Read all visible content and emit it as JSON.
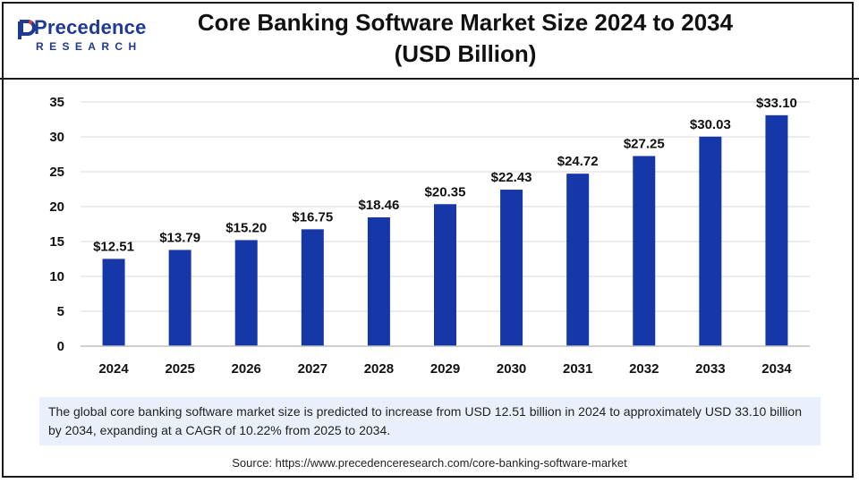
{
  "brand": {
    "name": "Precedence",
    "subtitle": "RESEARCH",
    "color": "#1f3a93"
  },
  "chart_data": {
    "type": "bar",
    "title_line1": "Core Banking Software Market Size 2024 to 2034",
    "title_line2": "(USD Billion)",
    "categories": [
      "2024",
      "2025",
      "2026",
      "2027",
      "2028",
      "2029",
      "2030",
      "2031",
      "2032",
      "2033",
      "2034"
    ],
    "values": [
      12.51,
      13.79,
      15.2,
      16.75,
      18.46,
      20.35,
      22.43,
      24.72,
      27.25,
      30.03,
      33.1
    ],
    "value_labels": [
      "$12.51",
      "$13.79",
      "$15.20",
      "$16.75",
      "$18.46",
      "$20.35",
      "$22.43",
      "$24.72",
      "$27.25",
      "$30.03",
      "$33.10"
    ],
    "yticks": [
      0,
      5,
      10,
      15,
      20,
      25,
      30,
      35
    ],
    "ylim": [
      0,
      35
    ],
    "grid": true,
    "bar_color": "#1537a8"
  },
  "note": "The global core banking software market size is predicted to increase from USD 12.51 billion in 2024 to approximately USD 33.10 billion by 2034, expanding at a CAGR of 10.22% from 2025 to 2034.",
  "source": "Source: https://www.precedenceresearch.com/core-banking-software-market"
}
